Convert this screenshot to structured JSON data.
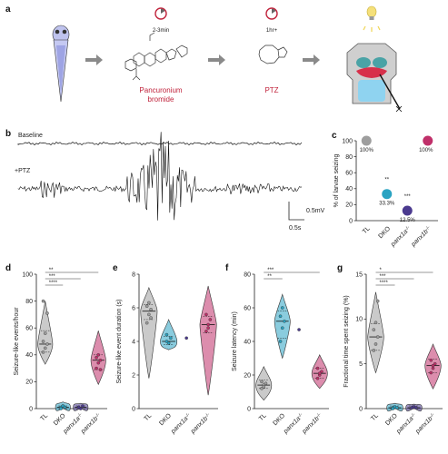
{
  "figure": {
    "panel_a": {
      "letter": "a",
      "step1_time": "2-3min",
      "step1_drug": "Pancuronium bromide",
      "step1_drug_line1": "Pancuronium",
      "step1_drug_line2": "bromide",
      "step2_time": "1hr+",
      "step2_drug": "PTZ"
    },
    "panel_b": {
      "letter": "b",
      "trace1_label": "Baseline",
      "trace2_label": "+PTZ",
      "scale_y": "0.5mV",
      "scale_x": "0.5s"
    },
    "colors": {
      "TL": "#9e9e9e",
      "DKO": "#2aa3c2",
      "panx1a": "#4b3a8f",
      "panx1b": "#c0306a"
    }
  },
  "chart_data": [
    {
      "panel": "c",
      "type": "scatter",
      "ylabel": "% of larvae seizing",
      "yticks": [
        "0",
        "20",
        "40",
        "60",
        "80",
        "100"
      ],
      "ylim": [
        0,
        100
      ],
      "categories": [
        "TL",
        "DKO",
        "panx1a-/-",
        "panx1b-/-"
      ],
      "values": [
        100,
        33.3,
        12.5,
        100
      ],
      "value_labels": [
        "100%",
        "33.3%",
        "12.5%",
        "100%"
      ],
      "significance": [
        "",
        "**",
        "***",
        ""
      ]
    },
    {
      "panel": "d",
      "type": "violin",
      "ylabel": "Seizure-like events/hour",
      "yticks": [
        "0",
        "20",
        "40",
        "60",
        "80",
        "100"
      ],
      "ylim": [
        0,
        100
      ],
      "categories": [
        "TL",
        "DKO",
        "panx1a-/-",
        "panx1b-/-"
      ],
      "medians": [
        48,
        1,
        1,
        36
      ],
      "quartiles": [
        [
          42,
          58
        ],
        [
          0,
          2
        ],
        [
          0,
          2
        ],
        [
          29,
          40
        ]
      ],
      "ranges": [
        [
          33,
          80
        ],
        [
          0,
          5
        ],
        [
          0,
          4
        ],
        [
          18,
          58
        ]
      ],
      "points": [
        [
          42,
          45,
          48,
          50,
          56,
          71,
          80
        ],
        [
          1,
          2,
          1,
          0,
          2,
          1
        ],
        [
          1,
          0,
          2,
          1
        ],
        [
          30,
          34,
          36,
          38,
          40,
          29
        ]
      ],
      "significance": [
        "****",
        "***",
        "**"
      ]
    },
    {
      "panel": "e",
      "type": "violin",
      "ylabel": "Seizure-like event duration (s)",
      "yticks": [
        "0",
        "2",
        "4",
        "6",
        "8"
      ],
      "ylim": [
        0,
        8
      ],
      "categories": [
        "TL",
        "DKO",
        "panx1a-/-",
        "panx1b-/-"
      ],
      "medians": [
        5.8,
        4.0,
        4.2,
        5.0
      ],
      "quartiles": [
        [
          5.3,
          6.2
        ],
        [
          3.8,
          4.3
        ],
        [
          4.2,
          4.2
        ],
        [
          4.5,
          5.5
        ]
      ],
      "ranges": [
        [
          1.8,
          7.2
        ],
        [
          3.5,
          5.3
        ],
        [
          4.2,
          4.2
        ],
        [
          0.8,
          7.3
        ]
      ],
      "points": [
        [
          5.1,
          5.6,
          5.9,
          6.1,
          6.3,
          5.4
        ],
        [
          4.0,
          3.9,
          4.2,
          4.4
        ],
        [
          4.2
        ],
        [
          4.6,
          5.0,
          5.3,
          5.6,
          4.8
        ]
      ]
    },
    {
      "panel": "f",
      "type": "violin",
      "ylabel": "Seizure latency (min)",
      "yticks": [
        "0",
        "20",
        "40",
        "60",
        "80"
      ],
      "ylim": [
        0,
        80
      ],
      "categories": [
        "TL",
        "DKO",
        "panx1a-/-",
        "panx1b-/-"
      ],
      "medians": [
        14,
        52,
        47,
        21
      ],
      "quartiles": [
        [
          12,
          17
        ],
        [
          42,
          58
        ],
        [
          47,
          47
        ],
        [
          18,
          24
        ]
      ],
      "ranges": [
        [
          5,
          25
        ],
        [
          30,
          68
        ],
        [
          47,
          47
        ],
        [
          12,
          32
        ]
      ],
      "points": [
        [
          12,
          14,
          15,
          16,
          13
        ],
        [
          40,
          48,
          52,
          55,
          60
        ],
        [
          47
        ],
        [
          18,
          20,
          22,
          24,
          21
        ]
      ],
      "significance": [
        "**",
        "***"
      ]
    },
    {
      "panel": "g",
      "type": "violin",
      "ylabel": "Fractional time spent seizing (%)",
      "yticks": [
        "0",
        "5",
        "10",
        "15"
      ],
      "ylim": [
        0,
        15
      ],
      "categories": [
        "TL",
        "DKO",
        "panx1a-/-",
        "panx1b-/-"
      ],
      "medians": [
        8,
        0.1,
        0.1,
        4.8
      ],
      "quartiles": [
        [
          6.5,
          9.5
        ],
        [
          0,
          0.3
        ],
        [
          0,
          0.3
        ],
        [
          4,
          5.5
        ]
      ],
      "ranges": [
        [
          4,
          13
        ],
        [
          0,
          0.6
        ],
        [
          0,
          0.5
        ],
        [
          2.2,
          7.2
        ]
      ],
      "points": [
        [
          6.5,
          7.2,
          8,
          8.8,
          9.6,
          12
        ],
        [
          0.1,
          0.2,
          0.1,
          0.0
        ],
        [
          0.1,
          0.2,
          0.1
        ],
        [
          4,
          4.5,
          5,
          5.4,
          4.8
        ]
      ],
      "significance": [
        "****",
        "***",
        "*"
      ]
    }
  ]
}
